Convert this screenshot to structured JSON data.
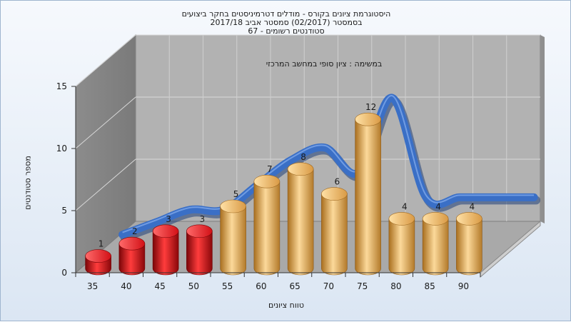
{
  "chart_data": {
    "type": "bar",
    "title": [
      "היסטוגרמת ציונים בקורס - מודלים דטרמיניסטים בחקר ביצועים",
      "בסמסטר (02/2017) סמסטר אביב 2017/18",
      "סטודנטים רשומים - 67"
    ],
    "annotation": "במשימה : ציון סופי במחשב המרכזי",
    "xlabel": "טווח ציונים",
    "ylabel": "מספר סטודנטים",
    "categories": [
      "35",
      "40",
      "45",
      "50",
      "55",
      "60",
      "65",
      "70",
      "75",
      "80",
      "85",
      "90"
    ],
    "values": [
      1,
      2,
      3,
      3,
      5,
      7,
      8,
      6,
      12,
      4,
      4,
      4
    ],
    "ylim": [
      0,
      15
    ],
    "yticks": [
      "0",
      "5",
      "10",
      "15"
    ],
    "bar_colors": [
      "#e0141b",
      "#e0141b",
      "#e0141b",
      "#e0141b",
      "#e8b460",
      "#e8b460",
      "#e8b460",
      "#e8b460",
      "#e8b460",
      "#e8b460",
      "#e8b460",
      "#e8b460"
    ],
    "curve_color": "#3a6fc6",
    "grid": true,
    "style": "3d-cylinder"
  }
}
